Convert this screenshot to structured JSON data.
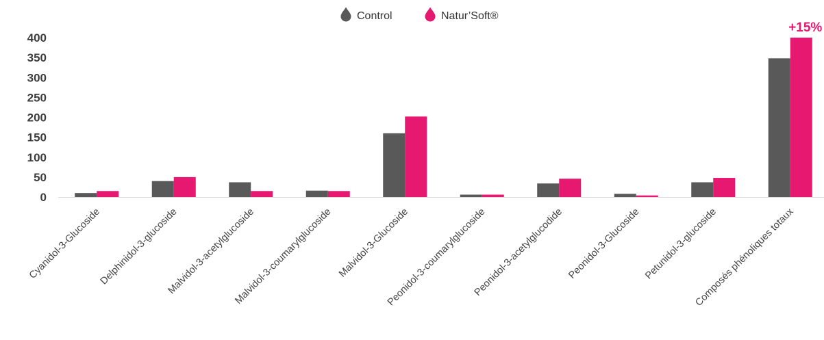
{
  "chart_data": {
    "type": "bar",
    "title": "",
    "xlabel": "",
    "ylabel": "",
    "ylim": [
      0,
      400
    ],
    "yticks": [
      0,
      50,
      100,
      150,
      200,
      250,
      300,
      350,
      400
    ],
    "grid": false,
    "legend_position": "top-center",
    "categories": [
      "Cyanidol-3-Glucoside",
      "Delphinidol-3-glucoside",
      "Malvidol-3-acetylglucoside",
      "Malvidol-3-coumarylglucoside",
      "Malvidol-3-Glucoside",
      "Peonidol-3-coumarylglucoside",
      "Peonidol-3-acetylglucodide",
      "Peonidol-3-Glucoside",
      "Petunidol-3-glucoside",
      "Composés phénoliques totaux"
    ],
    "series": [
      {
        "name": "Control",
        "color": "#595959",
        "values": [
          10,
          40,
          37,
          16,
          160,
          6,
          34,
          8,
          37,
          348
        ]
      },
      {
        "name": "Natur’Soft®",
        "color": "#e6186f",
        "values": [
          15,
          50,
          15,
          15,
          202,
          6,
          46,
          4,
          48,
          400
        ]
      }
    ],
    "annotations": [
      {
        "text": "+15%",
        "category_index": 9,
        "series_index": 1,
        "color": "#e6186f"
      }
    ],
    "legend_icon": "drop-icon"
  }
}
